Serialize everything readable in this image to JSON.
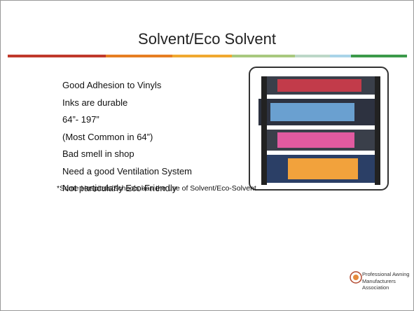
{
  "header": {
    "title": "Solvent/Eco Solvent"
  },
  "bullets": [
    "Good Adhesion to Vinyls",
    "Inks are durable",
    "64”- 197”",
    "(Most Common in 64”)",
    "Bad smell in shop",
    "Need a good Ventilation System",
    "Not particularly Eco-Friendly"
  ],
  "footnote": "*Some Hospitals/Schools ban the use of Solvent/Eco-Solvent",
  "logo": {
    "line1": "Professional Awning",
    "line2": "Manufacturers Association"
  }
}
